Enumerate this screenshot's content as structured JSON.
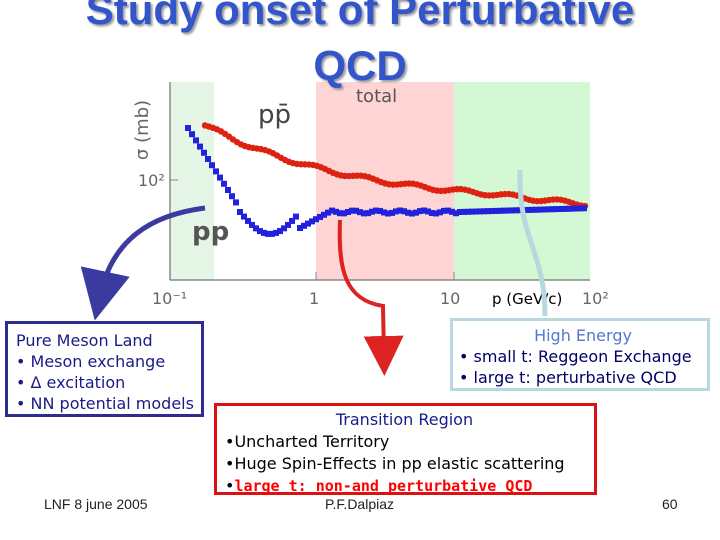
{
  "title": {
    "line1": "Study onset of Perturbative",
    "line2": "QCD"
  },
  "plot": {
    "y_axis_label": "σ (mb)",
    "y_tick": "10²",
    "x_ticks": [
      "10⁻¹",
      "1",
      "10",
      "10²"
    ],
    "x_axis_label": "p (GeV/c)",
    "label_total": "total",
    "label_ppbar": "pp̄",
    "label_pp": "pp",
    "colors": {
      "ppbar": "#dd2211",
      "pp": "#2222dd",
      "pure_region": "#e6f6e6",
      "transition_region": "#ffd4d4",
      "high_region": "#d4f7d4"
    }
  },
  "pure_meson": {
    "heading": "Pure Meson Land",
    "items": [
      "• Meson exchange",
      "• Δ excitation",
      "• NN potential models"
    ]
  },
  "high_energy": {
    "heading": "High Energy",
    "items": [
      "• small t: Reggeon Exchange",
      "• large t: perturbative QCD"
    ]
  },
  "transition": {
    "heading": "Transition Region",
    "items": [
      "•Uncharted Territory",
      "•Huge Spin-Effects in pp elastic scattering"
    ],
    "last_bullet": "•",
    "last_item": "large t: non-and perturbative QCD"
  },
  "footer": {
    "left": "LNF 8 june 2005",
    "center": "P.F.Dalpiaz",
    "page": "60"
  }
}
